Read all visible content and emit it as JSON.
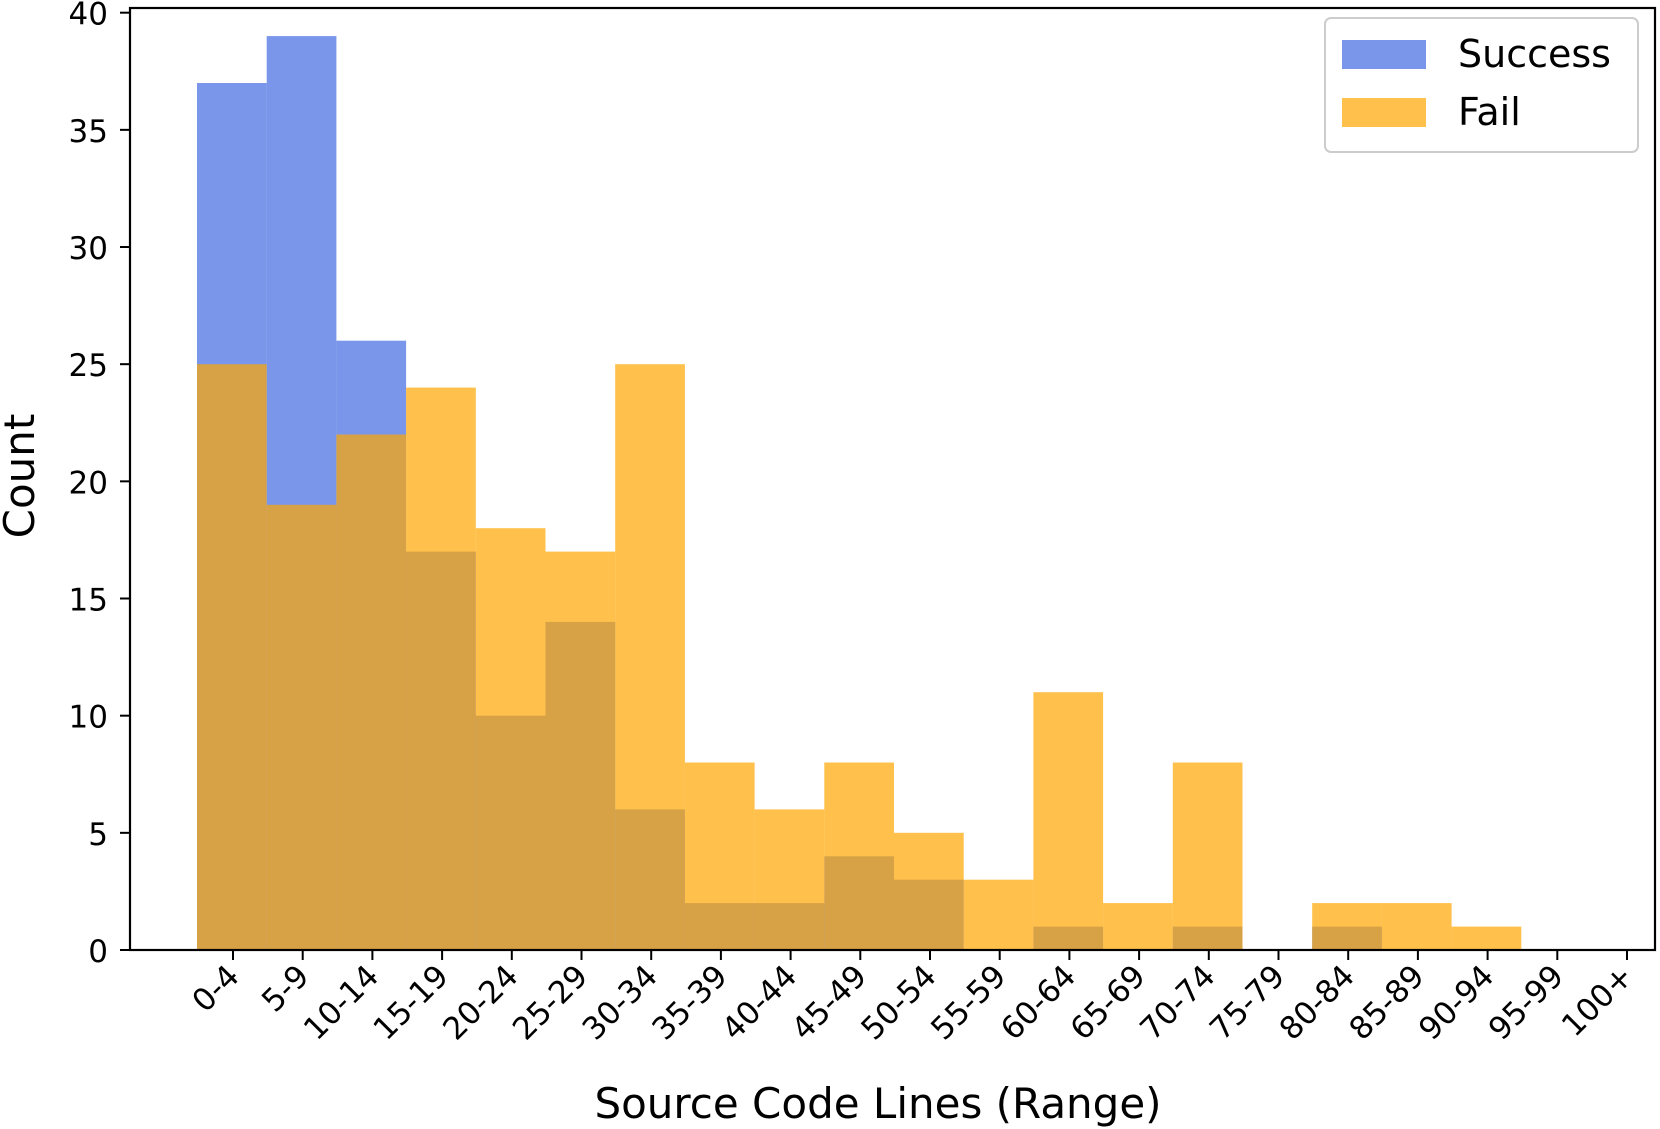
{
  "chart_data": {
    "type": "bar",
    "title": "",
    "xlabel": "Source Code Lines (Range)",
    "ylabel": "Count",
    "ylim": [
      0,
      40.2
    ],
    "yticks": [
      0,
      5,
      10,
      15,
      20,
      25,
      30,
      35,
      40
    ],
    "categories": [
      "0-4",
      "5-9",
      "10-14",
      "15-19",
      "20-24",
      "25-29",
      "30-34",
      "35-39",
      "40-44",
      "45-49",
      "50-54",
      "55-59",
      "60-64",
      "65-69",
      "70-74",
      "75-79",
      "80-84",
      "85-89",
      "90-94",
      "95-99",
      "100+"
    ],
    "series": [
      {
        "name": "Success",
        "color": "#4169e1",
        "opacity": 0.7,
        "values": [
          37,
          39,
          26,
          17,
          10,
          14,
          6,
          2,
          2,
          4,
          3,
          0,
          1,
          0,
          1,
          0,
          1,
          0,
          0,
          0,
          0
        ]
      },
      {
        "name": "Fail",
        "color": "#ffa500",
        "opacity": 0.7,
        "values": [
          25,
          19,
          22,
          24,
          18,
          17,
          25,
          8,
          6,
          8,
          5,
          3,
          11,
          2,
          8,
          0,
          2,
          2,
          1,
          0,
          0
        ]
      }
    ],
    "legend_position": "top-right",
    "grid": false,
    "overlay": true
  }
}
